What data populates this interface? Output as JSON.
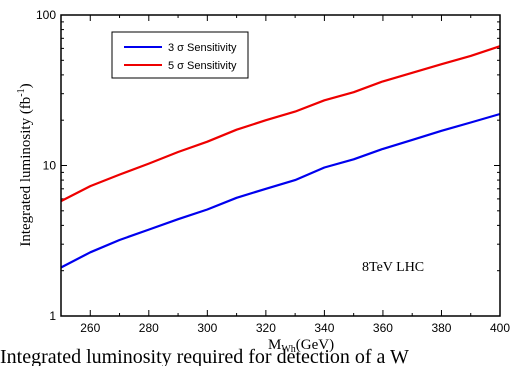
{
  "chart_data": {
    "type": "line",
    "title": "",
    "xlabel": "M",
    "xlabel_sub": "Wh",
    "xlabel_unit": "(GeV)",
    "ylabel": "Integrated luminosity (fb",
    "ylabel_sup": "-1",
    "ylabel_end": ")",
    "xlim": [
      250,
      400
    ],
    "ylim": [
      1,
      100
    ],
    "yscale": "log",
    "grid": false,
    "legend_position": "top-left",
    "x_ticks": [
      260,
      280,
      300,
      320,
      340,
      360,
      380,
      400
    ],
    "y_ticks": [
      1,
      10,
      100
    ],
    "x": [
      250,
      260,
      270,
      280,
      290,
      300,
      310,
      320,
      330,
      340,
      350,
      360,
      370,
      380,
      390,
      400
    ],
    "series": [
      {
        "name": "3 σ Sensitivity",
        "color": "#0000ee",
        "values": [
          2.1,
          2.65,
          3.2,
          3.75,
          4.4,
          5.1,
          6.1,
          7.0,
          8.0,
          9.7,
          11.0,
          12.9,
          14.8,
          17.0,
          19.3,
          22.0
        ]
      },
      {
        "name": "5 σ Sensitivity",
        "color": "#ee0000",
        "values": [
          5.8,
          7.3,
          8.7,
          10.3,
          12.3,
          14.4,
          17.3,
          20.0,
          22.8,
          27.1,
          30.7,
          36.2,
          41.3,
          47.1,
          53.5,
          62.0
        ]
      }
    ],
    "annotation": "8TeV LHC"
  },
  "caption": {
    "text": "Integrated luminosity required for detection of a W"
  }
}
